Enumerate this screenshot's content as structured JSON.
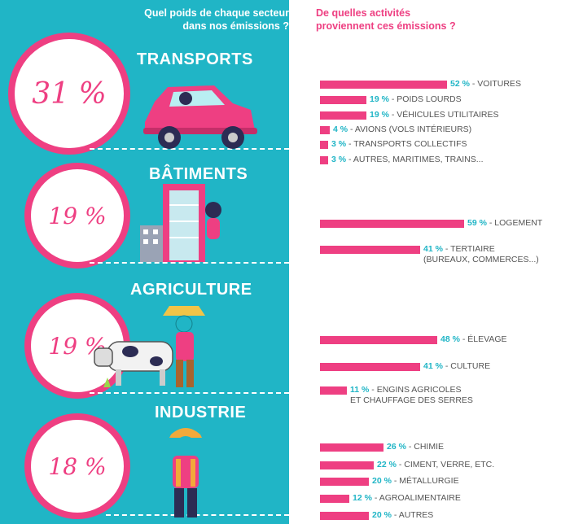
{
  "headings": {
    "left_line1": "Quel poids de chaque secteur",
    "left_line2": "dans nos émissions ?",
    "right_line1": "De quelles activités",
    "right_line2": "proviennent ces émissions ?"
  },
  "colors": {
    "accent": "#ee3f82",
    "teal": "#20b5c6",
    "text": "#555555"
  },
  "chart_data": {
    "type": "bar",
    "title": "De quelles activités proviennent ces émissions ?",
    "sectors": [
      {
        "name": "TRANSPORTS",
        "share_label": "31 %",
        "share": 31,
        "icon": "car-icon",
        "items": [
          {
            "pct_label": "52 %",
            "value": 52,
            "label": "VOITURES"
          },
          {
            "pct_label": "19 %",
            "value": 19,
            "label": "POIDS LOURDS"
          },
          {
            "pct_label": "19 %",
            "value": 19,
            "label": "VÉHICULES UTILITAIRES"
          },
          {
            "pct_label": "4 %",
            "value": 4,
            "label": "AVIONS (VOLS INTÉRIEURS)"
          },
          {
            "pct_label": "3 %",
            "value": 3,
            "label": "TRANSPORTS COLLECTIFS"
          },
          {
            "pct_label": "3 %",
            "value": 3,
            "label": "AUTRES, MARITIMES, TRAINS..."
          }
        ]
      },
      {
        "name": "BÂTIMENTS",
        "share_label": "19 %",
        "share": 19,
        "icon": "building-icon",
        "items": [
          {
            "pct_label": "59 %",
            "value": 59,
            "label": "LOGEMENT"
          },
          {
            "pct_label": "41 %",
            "value": 41,
            "label": "TERTIAIRE",
            "label2": "(BUREAUX, COMMERCES...)"
          }
        ]
      },
      {
        "name": "AGRICULTURE",
        "share_label": "19 %",
        "share": 19,
        "icon": "cow-farmer-icon",
        "items": [
          {
            "pct_label": "48 %",
            "value": 48,
            "label": "ÉLEVAGE"
          },
          {
            "pct_label": "41 %",
            "value": 41,
            "label": "CULTURE"
          },
          {
            "pct_label": "11 %",
            "value": 11,
            "label": "ENGINS AGRICOLES",
            "label2": "ET CHAUFFAGE DES SERRES"
          }
        ]
      },
      {
        "name": "INDUSTRIE",
        "share_label": "18 %",
        "share": 18,
        "icon": "worker-icon",
        "items": [
          {
            "pct_label": "26 %",
            "value": 26,
            "label": "CHIMIE"
          },
          {
            "pct_label": "22 %",
            "value": 22,
            "label": "CIMENT, VERRE, ETC."
          },
          {
            "pct_label": "20 %",
            "value": 20,
            "label": "MÉTALLURGIE"
          },
          {
            "pct_label": "12 %",
            "value": 12,
            "label": "AGROALIMENTAIRE"
          },
          {
            "pct_label": "20 %",
            "value": 20,
            "label": "AUTRES"
          }
        ]
      }
    ]
  }
}
